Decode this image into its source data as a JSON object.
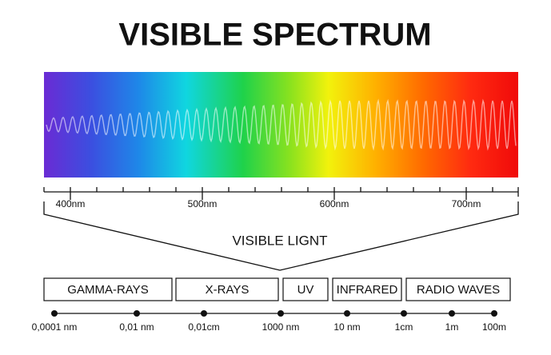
{
  "title": "VISIBLE SPECTRUM",
  "wavelength_axis": {
    "labels": [
      "400nm",
      "500nm",
      "600nm",
      "700nm"
    ]
  },
  "bracket_label": "VISIBLE LIGNT",
  "bands": [
    "GAMMA-RAYS",
    "X-RAYS",
    "UV",
    "INFRARED",
    "RADIO WAVES"
  ],
  "scale": {
    "labels": [
      "0,0001 nm",
      "0,01 nm",
      "0,01cm",
      "1000 nm",
      "10 nm",
      "1cm",
      "1m",
      "100m"
    ]
  }
}
